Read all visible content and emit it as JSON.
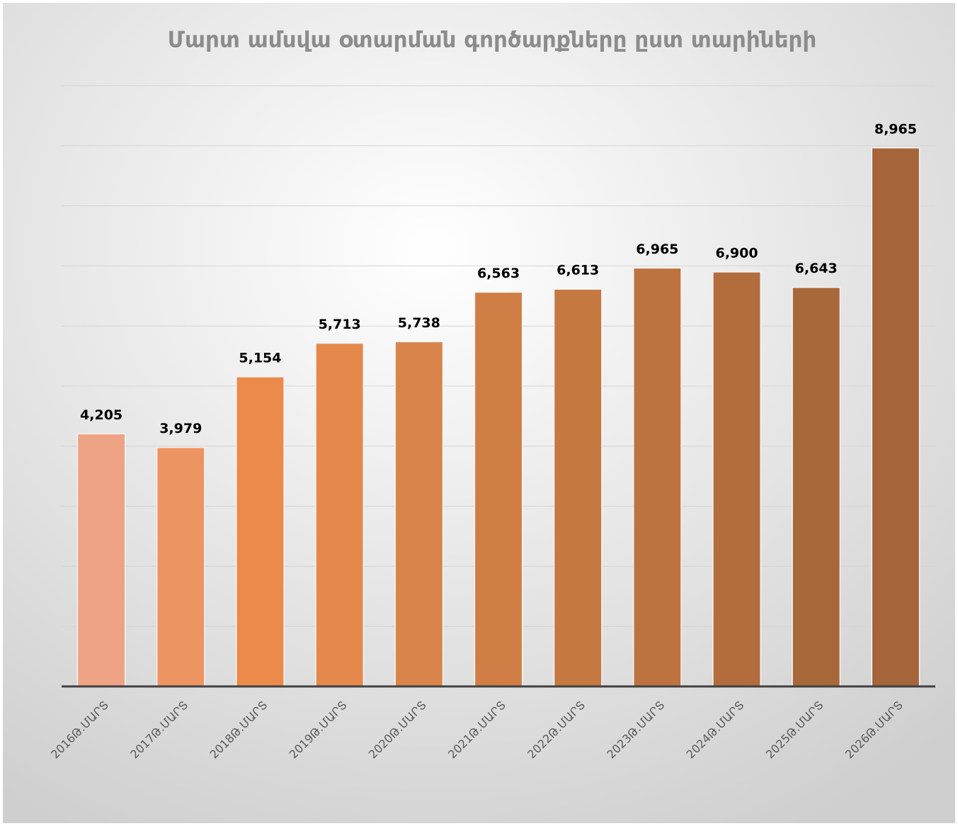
{
  "chart_data": {
    "type": "bar",
    "title": "Մարտ ամսվա օտարման գործարքները ըստ տարիների",
    "categories": [
      "2016Թ.ՄԱՐՏ",
      "2017Թ.ՄԱՐՏ",
      "2018Թ.ՄԱՐՏ",
      "2019Թ.ՄԱՐՏ",
      "2020Թ.ՄԱՐՏ",
      "2021Թ.ՄԱՐՏ",
      "2022Թ.ՄԱՐՏ",
      "2023Թ.ՄԱՐՏ",
      "2024Թ.ՄԱՐՏ",
      "2025Թ.ՄԱՐՏ",
      "2026Թ.ՄԱՐՏ"
    ],
    "values": [
      4205,
      3979,
      5154,
      5713,
      5738,
      6563,
      6613,
      6965,
      6900,
      6643,
      8965
    ],
    "value_labels": [
      "4,205",
      "3,979",
      "5,154",
      "5,713",
      "5,738",
      "6,563",
      "6,613",
      "6,965",
      "6,900",
      "6,643",
      "8,965"
    ],
    "colors": [
      "#eda384",
      "#ed9463",
      "#eb8a4a",
      "#e4884b",
      "#d8844a",
      "#d07e45",
      "#c67841",
      "#bd733f",
      "#b36d3c",
      "#a96839",
      "#a5643a"
    ],
    "ylim": [
      0,
      10000
    ],
    "yticks": [
      0,
      1000,
      2000,
      3000,
      4000,
      5000,
      6000,
      7000,
      8000,
      9000,
      10000
    ],
    "grid": true
  }
}
